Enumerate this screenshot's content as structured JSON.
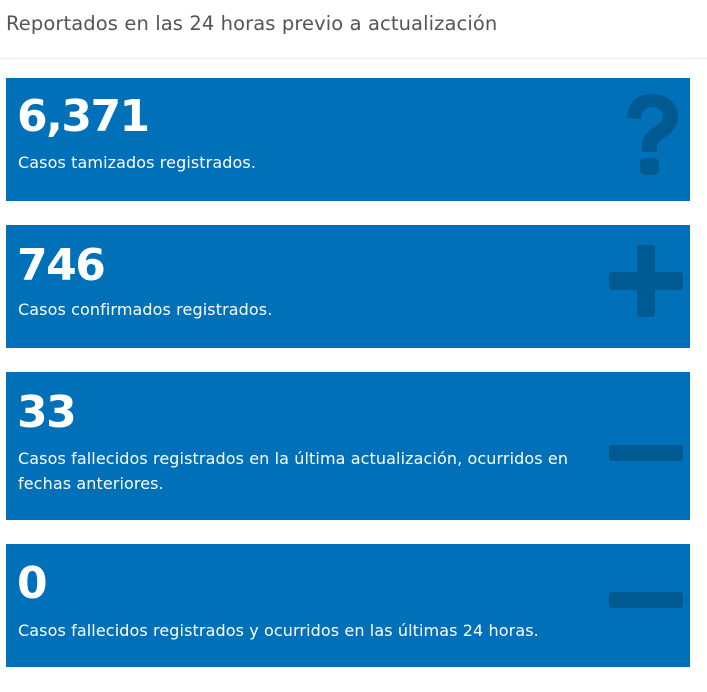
{
  "header": {
    "title": "Reportados en las 24 horas previo a actualización"
  },
  "cards": [
    {
      "value": "6,371",
      "description": "Casos tamizados registrados.",
      "icon": "question-icon"
    },
    {
      "value": "746",
      "description": "Casos confirmados registrados.",
      "icon": "plus-icon"
    },
    {
      "value": "33",
      "description": "Casos fallecidos registrados en la última actualización, ocurridos en fechas anteriores.",
      "icon": "minus-icon"
    },
    {
      "value": "0",
      "description": "Casos fallecidos registrados y ocurridos en las últimas 24 horas.",
      "icon": "minus-icon"
    }
  ],
  "colors": {
    "card_background": "#0071b9",
    "icon": "#005a92",
    "header_text": "#555555"
  }
}
